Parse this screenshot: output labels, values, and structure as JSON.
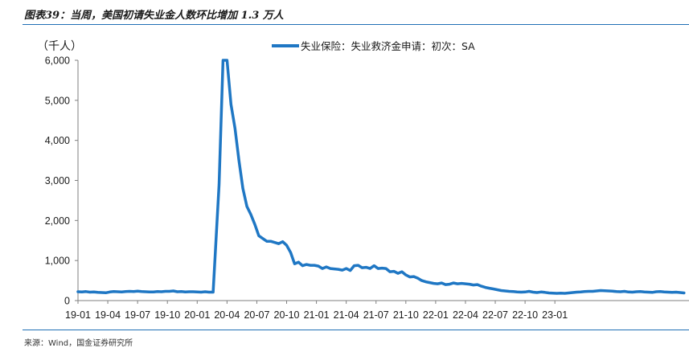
{
  "header": {
    "title": "图表39：当周，美国初请失业金人数环比增加 1.3 万人"
  },
  "footer": {
    "source": "来源：Wind，国金证券研究所"
  },
  "colors": {
    "series": "#1f77c4",
    "rule": "#1f6fb5",
    "axis": "#7f7f7f"
  },
  "chart_data": {
    "type": "line",
    "ylabel": "（千人）",
    "ylim": [
      0,
      6000
    ],
    "yticks": [
      0,
      1000,
      2000,
      3000,
      4000,
      5000,
      6000
    ],
    "ytick_labels": [
      "0",
      "1,000",
      "2,000",
      "3,000",
      "4,000",
      "5,000",
      "6,000"
    ],
    "xticks": [
      "19-01",
      "19-04",
      "19-07",
      "19-10",
      "20-01",
      "20-04",
      "20-07",
      "20-10",
      "21-01",
      "21-04",
      "21-07",
      "21-10",
      "22-01",
      "22-04",
      "22-07",
      "22-10",
      "23-01"
    ],
    "grid": false,
    "legend": "top-center",
    "series": [
      {
        "name": "失业保险：失业救济金申请：初次：SA",
        "points": [
          [
            0,
            220
          ],
          [
            0.4,
            215
          ],
          [
            0.8,
            225
          ],
          [
            1.2,
            210
          ],
          [
            1.6,
            215
          ],
          [
            2.0,
            205
          ],
          [
            2.4,
            200
          ],
          [
            2.8,
            195
          ],
          [
            3.2,
            215
          ],
          [
            3.6,
            225
          ],
          [
            4.0,
            220
          ],
          [
            4.4,
            215
          ],
          [
            4.8,
            225
          ],
          [
            5.2,
            230
          ],
          [
            5.6,
            225
          ],
          [
            6.0,
            235
          ],
          [
            6.4,
            225
          ],
          [
            6.8,
            220
          ],
          [
            7.2,
            215
          ],
          [
            7.6,
            215
          ],
          [
            8.0,
            225
          ],
          [
            8.4,
            220
          ],
          [
            8.8,
            230
          ],
          [
            9.2,
            230
          ],
          [
            9.6,
            240
          ],
          [
            10.0,
            220
          ],
          [
            10.4,
            225
          ],
          [
            10.8,
            215
          ],
          [
            11.2,
            220
          ],
          [
            11.6,
            220
          ],
          [
            12.0,
            215
          ],
          [
            12.4,
            210
          ],
          [
            12.8,
            220
          ],
          [
            13.2,
            210
          ],
          [
            13.6,
            211
          ],
          [
            14.2,
            2900
          ],
          [
            14.6,
            6000
          ],
          [
            15.0,
            6000
          ],
          [
            15.4,
            4900
          ],
          [
            15.8,
            4300
          ],
          [
            16.2,
            3500
          ],
          [
            16.6,
            2800
          ],
          [
            17.0,
            2350
          ],
          [
            17.4,
            2150
          ],
          [
            17.8,
            1900
          ],
          [
            18.2,
            1620
          ],
          [
            18.6,
            1550
          ],
          [
            19.0,
            1480
          ],
          [
            19.4,
            1480
          ],
          [
            19.8,
            1450
          ],
          [
            20.2,
            1420
          ],
          [
            20.6,
            1470
          ],
          [
            21.0,
            1380
          ],
          [
            21.4,
            1200
          ],
          [
            21.8,
            920
          ],
          [
            22.2,
            960
          ],
          [
            22.6,
            870
          ],
          [
            23.0,
            900
          ],
          [
            23.4,
            880
          ],
          [
            23.8,
            880
          ],
          [
            24.2,
            860
          ],
          [
            24.6,
            800
          ],
          [
            25.0,
            840
          ],
          [
            25.4,
            800
          ],
          [
            25.8,
            790
          ],
          [
            26.2,
            780
          ],
          [
            26.6,
            760
          ],
          [
            27.0,
            800
          ],
          [
            27.4,
            750
          ],
          [
            27.8,
            870
          ],
          [
            28.2,
            880
          ],
          [
            28.6,
            820
          ],
          [
            29.0,
            830
          ],
          [
            29.4,
            800
          ],
          [
            29.8,
            870
          ],
          [
            30.2,
            800
          ],
          [
            30.6,
            810
          ],
          [
            31.0,
            800
          ],
          [
            31.4,
            720
          ],
          [
            31.8,
            730
          ],
          [
            32.2,
            680
          ],
          [
            32.6,
            720
          ],
          [
            33.0,
            640
          ],
          [
            33.4,
            590
          ],
          [
            33.8,
            600
          ],
          [
            34.2,
            560
          ],
          [
            34.6,
            500
          ],
          [
            35.0,
            470
          ],
          [
            35.4,
            450
          ],
          [
            35.8,
            430
          ],
          [
            36.2,
            420
          ],
          [
            36.6,
            440
          ],
          [
            37.0,
            400
          ],
          [
            37.4,
            410
          ],
          [
            37.8,
            440
          ],
          [
            38.2,
            420
          ],
          [
            38.6,
            430
          ],
          [
            39.0,
            420
          ],
          [
            39.4,
            410
          ],
          [
            39.8,
            390
          ],
          [
            40.2,
            400
          ],
          [
            40.6,
            360
          ],
          [
            41.0,
            330
          ],
          [
            41.4,
            310
          ],
          [
            41.8,
            290
          ],
          [
            42.2,
            270
          ],
          [
            42.6,
            250
          ],
          [
            43.0,
            240
          ],
          [
            43.4,
            230
          ],
          [
            43.8,
            225
          ],
          [
            44.2,
            215
          ],
          [
            44.6,
            210
          ],
          [
            45.0,
            215
          ],
          [
            45.4,
            230
          ],
          [
            45.8,
            210
          ],
          [
            46.2,
            200
          ],
          [
            46.6,
            215
          ],
          [
            47.0,
            205
          ],
          [
            47.4,
            190
          ],
          [
            47.8,
            185
          ],
          [
            48.2,
            180
          ],
          [
            48.6,
            185
          ],
          [
            49.0,
            180
          ],
          [
            49.4,
            190
          ],
          [
            49.8,
            200
          ],
          [
            50.2,
            210
          ],
          [
            50.6,
            215
          ],
          [
            51.0,
            225
          ],
          [
            51.4,
            230
          ],
          [
            51.8,
            230
          ],
          [
            52.2,
            240
          ],
          [
            52.6,
            250
          ],
          [
            53.0,
            245
          ],
          [
            53.4,
            240
          ],
          [
            53.8,
            235
          ],
          [
            54.2,
            225
          ],
          [
            54.6,
            220
          ],
          [
            55.0,
            230
          ],
          [
            55.4,
            215
          ],
          [
            55.8,
            210
          ],
          [
            56.2,
            220
          ],
          [
            56.6,
            225
          ],
          [
            57.0,
            215
          ],
          [
            57.4,
            210
          ],
          [
            57.8,
            205
          ],
          [
            58.2,
            220
          ],
          [
            58.6,
            225
          ],
          [
            59.0,
            215
          ],
          [
            59.4,
            210
          ],
          [
            59.8,
            205
          ],
          [
            60.2,
            210
          ],
          [
            60.6,
            200
          ],
          [
            61.0,
            190
          ]
        ]
      }
    ]
  }
}
